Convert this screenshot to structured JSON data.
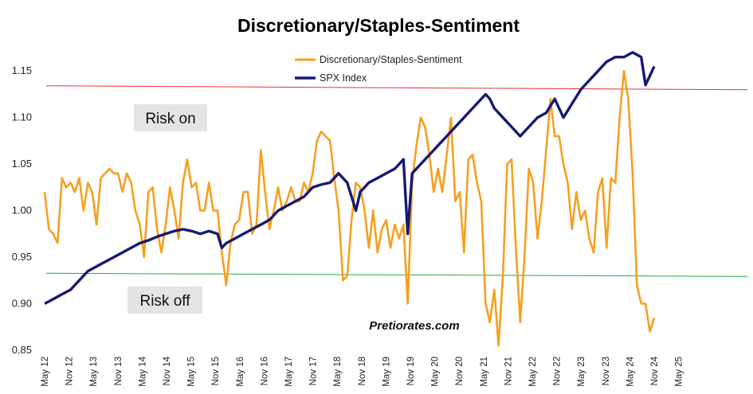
{
  "chart_data": {
    "type": "line",
    "title": "Discretionary/Staples-Sentiment",
    "ylim": [
      0.85,
      1.175
    ],
    "yticks": [
      "0.85",
      "0.90",
      "0.95",
      "1.00",
      "1.05",
      "1.10",
      "1.15"
    ],
    "xlim": [
      0,
      156
    ],
    "xtick_labels": [
      "May 12",
      "Nov 12",
      "May 13",
      "Nov 13",
      "May 14",
      "Nov 14",
      "May 15",
      "Nov 15",
      "May 16",
      "Nov 16",
      "May 17",
      "Nov 17",
      "May 18",
      "Nov 18",
      "May 19",
      "Nov 19",
      "May 20",
      "Nov 20",
      "May 21",
      "Nov 21",
      "May 22",
      "Nov 22",
      "May 23",
      "Nov 23",
      "May 24",
      "Nov 24",
      "May 25"
    ],
    "legend_position": "top-center",
    "series": [
      {
        "name": "Discretionary/Staples-Sentiment",
        "color": "#f5a020",
        "points": [
          [
            0,
            1.02
          ],
          [
            1,
            0.98
          ],
          [
            2,
            0.975
          ],
          [
            3,
            0.965
          ],
          [
            4,
            1.035
          ],
          [
            5,
            1.025
          ],
          [
            6,
            1.03
          ],
          [
            7,
            1.02
          ],
          [
            8,
            1.035
          ],
          [
            9,
            1.0
          ],
          [
            10,
            1.03
          ],
          [
            11,
            1.02
          ],
          [
            12,
            0.985
          ],
          [
            13,
            1.035
          ],
          [
            14,
            1.04
          ],
          [
            15,
            1.045
          ],
          [
            16,
            1.04
          ],
          [
            17,
            1.04
          ],
          [
            18,
            1.02
          ],
          [
            19,
            1.04
          ],
          [
            20,
            1.03
          ],
          [
            21,
            1.0
          ],
          [
            22,
            0.985
          ],
          [
            23,
            0.95
          ],
          [
            24,
            1.02
          ],
          [
            25,
            1.025
          ],
          [
            26,
            0.98
          ],
          [
            27,
            0.955
          ],
          [
            28,
            0.985
          ],
          [
            29,
            1.025
          ],
          [
            30,
            1.0
          ],
          [
            31,
            0.97
          ],
          [
            32,
            1.03
          ],
          [
            33,
            1.055
          ],
          [
            34,
            1.025
          ],
          [
            35,
            1.03
          ],
          [
            36,
            1.0
          ],
          [
            37,
            1.0
          ],
          [
            38,
            1.03
          ],
          [
            39,
            1.0
          ],
          [
            40,
            1.0
          ],
          [
            41,
            0.955
          ],
          [
            42,
            0.92
          ],
          [
            43,
            0.965
          ],
          [
            44,
            0.985
          ],
          [
            45,
            0.99
          ],
          [
            46,
            1.02
          ],
          [
            47,
            1.02
          ],
          [
            48,
            0.975
          ],
          [
            49,
            0.985
          ],
          [
            50,
            1.065
          ],
          [
            51,
            1.02
          ],
          [
            52,
            0.98
          ],
          [
            53,
            1.0
          ],
          [
            54,
            1.025
          ],
          [
            55,
            1.0
          ],
          [
            56,
            1.01
          ],
          [
            57,
            1.025
          ],
          [
            58,
            1.01
          ],
          [
            59,
            1.01
          ],
          [
            60,
            1.03
          ],
          [
            61,
            1.02
          ],
          [
            62,
            1.04
          ],
          [
            63,
            1.075
          ],
          [
            64,
            1.085
          ],
          [
            65,
            1.08
          ],
          [
            66,
            1.075
          ],
          [
            67,
            1.035
          ],
          [
            68,
            1.0
          ],
          [
            69,
            0.925
          ],
          [
            70,
            0.93
          ],
          [
            71,
            0.99
          ],
          [
            72,
            1.03
          ],
          [
            73,
            1.025
          ],
          [
            74,
            1.0
          ],
          [
            75,
            0.96
          ],
          [
            76,
            1.0
          ],
          [
            77,
            0.955
          ],
          [
            78,
            0.98
          ],
          [
            79,
            0.99
          ],
          [
            80,
            0.96
          ],
          [
            81,
            0.985
          ],
          [
            82,
            0.97
          ],
          [
            83,
            0.985
          ],
          [
            84,
            0.9
          ],
          [
            85,
            1.03
          ],
          [
            86,
            1.07
          ],
          [
            87,
            1.1
          ],
          [
            88,
            1.09
          ],
          [
            89,
            1.06
          ],
          [
            90,
            1.02
          ],
          [
            91,
            1.045
          ],
          [
            92,
            1.02
          ],
          [
            93,
            1.06
          ],
          [
            94,
            1.1
          ],
          [
            95,
            1.01
          ],
          [
            96,
            1.02
          ],
          [
            97,
            0.955
          ],
          [
            98,
            1.055
          ],
          [
            99,
            1.06
          ],
          [
            100,
            1.03
          ],
          [
            101,
            1.01
          ],
          [
            102,
            0.9
          ],
          [
            103,
            0.88
          ],
          [
            104,
            0.915
          ],
          [
            105,
            0.855
          ],
          [
            106,
            0.93
          ],
          [
            107,
            1.05
          ],
          [
            108,
            1.055
          ],
          [
            109,
            0.96
          ],
          [
            110,
            0.88
          ],
          [
            111,
            0.95
          ],
          [
            112,
            1.045
          ],
          [
            113,
            1.03
          ],
          [
            114,
            0.97
          ],
          [
            115,
            1.01
          ],
          [
            116,
            1.065
          ],
          [
            117,
            1.12
          ],
          [
            118,
            1.08
          ],
          [
            119,
            1.08
          ],
          [
            120,
            1.05
          ],
          [
            121,
            1.03
          ],
          [
            122,
            0.98
          ],
          [
            123,
            1.02
          ],
          [
            124,
            0.99
          ],
          [
            125,
            1.0
          ],
          [
            126,
            0.97
          ],
          [
            127,
            0.955
          ],
          [
            128,
            1.02
          ],
          [
            129,
            1.035
          ],
          [
            130,
            0.96
          ],
          [
            131,
            1.035
          ],
          [
            132,
            1.03
          ],
          [
            133,
            1.1
          ],
          [
            134,
            1.15
          ],
          [
            135,
            1.12
          ],
          [
            136,
            1.04
          ],
          [
            137,
            0.92
          ],
          [
            138,
            0.9
          ],
          [
            139,
            0.9
          ],
          [
            140,
            0.87
          ],
          [
            141,
            0.885
          ]
        ]
      },
      {
        "name": "SPX Index",
        "color": "#151a72",
        "points": [
          [
            0,
            0.9
          ],
          [
            2,
            0.905
          ],
          [
            4,
            0.91
          ],
          [
            6,
            0.915
          ],
          [
            8,
            0.925
          ],
          [
            10,
            0.935
          ],
          [
            12,
            0.94
          ],
          [
            14,
            0.945
          ],
          [
            16,
            0.95
          ],
          [
            18,
            0.955
          ],
          [
            20,
            0.96
          ],
          [
            22,
            0.965
          ],
          [
            24,
            0.968
          ],
          [
            26,
            0.972
          ],
          [
            28,
            0.975
          ],
          [
            30,
            0.978
          ],
          [
            32,
            0.98
          ],
          [
            34,
            0.978
          ],
          [
            36,
            0.975
          ],
          [
            38,
            0.978
          ],
          [
            40,
            0.975
          ],
          [
            41,
            0.96
          ],
          [
            42,
            0.965
          ],
          [
            44,
            0.97
          ],
          [
            46,
            0.975
          ],
          [
            48,
            0.98
          ],
          [
            50,
            0.985
          ],
          [
            52,
            0.99
          ],
          [
            54,
            1.0
          ],
          [
            56,
            1.005
          ],
          [
            58,
            1.01
          ],
          [
            60,
            1.015
          ],
          [
            62,
            1.025
          ],
          [
            64,
            1.028
          ],
          [
            66,
            1.03
          ],
          [
            68,
            1.04
          ],
          [
            70,
            1.03
          ],
          [
            72,
            1.0
          ],
          [
            73,
            1.02
          ],
          [
            75,
            1.03
          ],
          [
            77,
            1.035
          ],
          [
            79,
            1.04
          ],
          [
            81,
            1.045
          ],
          [
            83,
            1.055
          ],
          [
            84,
            0.975
          ],
          [
            85,
            1.04
          ],
          [
            87,
            1.05
          ],
          [
            89,
            1.06
          ],
          [
            91,
            1.07
          ],
          [
            93,
            1.08
          ],
          [
            95,
            1.09
          ],
          [
            97,
            1.1
          ],
          [
            99,
            1.11
          ],
          [
            101,
            1.12
          ],
          [
            102,
            1.125
          ],
          [
            103,
            1.12
          ],
          [
            104,
            1.11
          ],
          [
            106,
            1.1
          ],
          [
            108,
            1.09
          ],
          [
            110,
            1.08
          ],
          [
            112,
            1.09
          ],
          [
            114,
            1.1
          ],
          [
            116,
            1.105
          ],
          [
            118,
            1.12
          ],
          [
            120,
            1.1
          ],
          [
            122,
            1.115
          ],
          [
            124,
            1.13
          ],
          [
            126,
            1.14
          ],
          [
            128,
            1.15
          ],
          [
            130,
            1.16
          ],
          [
            132,
            1.165
          ],
          [
            134,
            1.165
          ],
          [
            136,
            1.17
          ],
          [
            138,
            1.165
          ],
          [
            139,
            1.135
          ],
          [
            140,
            1.145
          ],
          [
            141,
            1.155
          ]
        ]
      }
    ],
    "reference_lines": [
      {
        "label": "Risk on",
        "value": 1.132,
        "color": "#e8303a"
      },
      {
        "label": "Risk off",
        "value": 0.931,
        "color": "#22aa44"
      }
    ],
    "annotations": [
      "Pretiorates.com"
    ]
  }
}
